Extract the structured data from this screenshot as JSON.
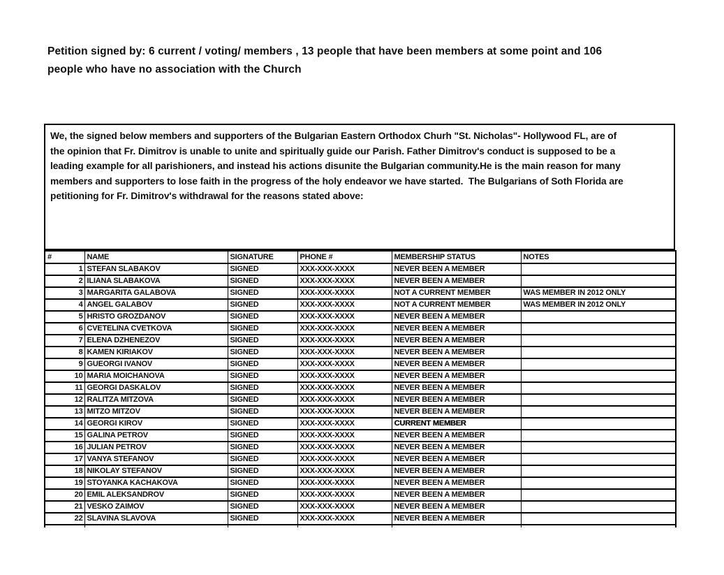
{
  "header": {
    "lines": [
      "Petition signed by: 6 current / voting/ members , 13 people that have been members at some point and 106",
      "people who have no association with the Church"
    ]
  },
  "statement": {
    "lines": [
      "We, the signed below members and supporters of the Bulgarian Eastern Orthodox Churh \"St. Nicholas\"- Hollywood FL, are of",
      "the opinion that Fr. Dimitrov is unable to unite and spiritually guide our Parish. Father Dimitrov's conduct is supposed to be a",
      "leading example for all parishioners, and instead his actions disunite the Bulgarian community.He is the main reason for many",
      "members and supporters to lose faith in the progress of the holy endeavor we have started.  The Bulgarians of Soth Florida are",
      "petitioning for Fr. Dimitrov's withdrawal for the reasons stated above:"
    ]
  },
  "table": {
    "headers": [
      "#",
      "NAME",
      "SIGNATURE",
      "PHONE #",
      "MEMBERSHIP STATUS",
      "NOTES"
    ],
    "rows": [
      {
        "num": "1",
        "name": "STEFAN SLABAKOV",
        "signature": "SIGNED",
        "phone": "XXX-XXX-XXXX",
        "status": "NEVER BEEN A MEMBER",
        "notes": "",
        "status_bold": false
      },
      {
        "num": "2",
        "name": "ILIANA SLABAKOVA",
        "signature": "SIGNED",
        "phone": "XXX-XXX-XXXX",
        "status": "NEVER BEEN A MEMBER",
        "notes": "",
        "status_bold": false
      },
      {
        "num": "3",
        "name": "MARGARITA GALABOVA",
        "signature": "SIGNED",
        "phone": "XXX-XXX-XXXX",
        "status": "NOT A CURRENT MEMBER",
        "notes": "WAS MEMBER IN 2012 ONLY",
        "status_bold": false
      },
      {
        "num": "4",
        "name": "ANGEL GALABOV",
        "signature": "SIGNED",
        "phone": "XXX-XXX-XXXX",
        "status": "NOT A CURRENT MEMBER",
        "notes": "WAS MEMBER IN 2012 ONLY",
        "status_bold": false
      },
      {
        "num": "5",
        "name": "HRISTO GROZDANOV",
        "signature": "SIGNED",
        "phone": "XXX-XXX-XXXX",
        "status": "NEVER BEEN A MEMBER",
        "notes": "",
        "status_bold": false
      },
      {
        "num": "6",
        "name": "CVETELINA CVETKOVA",
        "signature": "SIGNED",
        "phone": "XXX-XXX-XXXX",
        "status": "NEVER BEEN A MEMBER",
        "notes": "",
        "status_bold": false
      },
      {
        "num": "7",
        "name": "ELENA DZHENEZOV",
        "signature": "SIGNED",
        "phone": "XXX-XXX-XXXX",
        "status": "NEVER BEEN A MEMBER",
        "notes": "",
        "status_bold": false
      },
      {
        "num": "8",
        "name": "KAMEN KIRIAKOV",
        "signature": "SIGNED",
        "phone": "XXX-XXX-XXXX",
        "status": "NEVER BEEN A MEMBER",
        "notes": "",
        "status_bold": false
      },
      {
        "num": "9",
        "name": "GUEORGI IVANOV",
        "signature": "SIGNED",
        "phone": "XXX-XXX-XXXX",
        "status": "NEVER BEEN A MEMBER",
        "notes": "",
        "status_bold": false
      },
      {
        "num": "10",
        "name": "MARIA MOICHANOVA",
        "signature": "SIGNED",
        "phone": "XXX-XXX-XXXX",
        "status": "NEVER BEEN A MEMBER",
        "notes": "",
        "status_bold": false
      },
      {
        "num": "11",
        "name": "GEORGI DASKALOV",
        "signature": "SIGNED",
        "phone": "XXX-XXX-XXXX",
        "status": "NEVER BEEN A MEMBER",
        "notes": "",
        "status_bold": false
      },
      {
        "num": "12",
        "name": "RALITZA MITZOVA",
        "signature": "SIGNED",
        "phone": "XXX-XXX-XXXX",
        "status": "NEVER BEEN A MEMBER",
        "notes": "",
        "status_bold": false
      },
      {
        "num": "13",
        "name": "MITZO MITZOV",
        "signature": "SIGNED",
        "phone": "XXX-XXX-XXXX",
        "status": "NEVER BEEN A MEMBER",
        "notes": "",
        "status_bold": false
      },
      {
        "num": "14",
        "name": "GEORGI KIROV",
        "signature": "SIGNED",
        "phone": "XXX-XXX-XXXX",
        "status": "CURRENT MEMBER",
        "notes": "",
        "status_bold": true
      },
      {
        "num": "15",
        "name": "GALINA PETROV",
        "signature": "SIGNED",
        "phone": "XXX-XXX-XXXX",
        "status": "NEVER BEEN A MEMBER",
        "notes": "",
        "status_bold": false
      },
      {
        "num": "16",
        "name": "JULIAN PETROV",
        "signature": "SIGNED",
        "phone": "XXX-XXX-XXXX",
        "status": "NEVER BEEN A MEMBER",
        "notes": "",
        "status_bold": false
      },
      {
        "num": "17",
        "name": "VANYA STEFANOV",
        "signature": "SIGNED",
        "phone": "XXX-XXX-XXXX",
        "status": "NEVER BEEN A MEMBER",
        "notes": "",
        "status_bold": false
      },
      {
        "num": "18",
        "name": "NIKOLAY STEFANOV",
        "signature": "SIGNED",
        "phone": "XXX-XXX-XXXX",
        "status": "NEVER BEEN A MEMBER",
        "notes": "",
        "status_bold": false
      },
      {
        "num": "19",
        "name": "STOYANKA KACHAKOVA",
        "signature": "SIGNED",
        "phone": "XXX-XXX-XXXX",
        "status": "NEVER BEEN A MEMBER",
        "notes": "",
        "status_bold": false
      },
      {
        "num": "20",
        "name": "EMIL ALEKSANDROV",
        "signature": "SIGNED",
        "phone": "XXX-XXX-XXXX",
        "status": "NEVER BEEN A MEMBER",
        "notes": "",
        "status_bold": false
      },
      {
        "num": "21",
        "name": "VESKO ZAIMOV",
        "signature": "SIGNED",
        "phone": "XXX-XXX-XXXX",
        "status": "NEVER BEEN A MEMBER",
        "notes": "",
        "status_bold": false
      },
      {
        "num": "22",
        "name": "SLAVINA SLAVOVA",
        "signature": "SIGNED",
        "phone": "XXX-XXX-XXXX",
        "status": "NEVER BEEN A MEMBER",
        "notes": "",
        "status_bold": false
      }
    ]
  },
  "colors": {
    "text": "#111111",
    "border": "#000000",
    "background": "#ffffff"
  }
}
